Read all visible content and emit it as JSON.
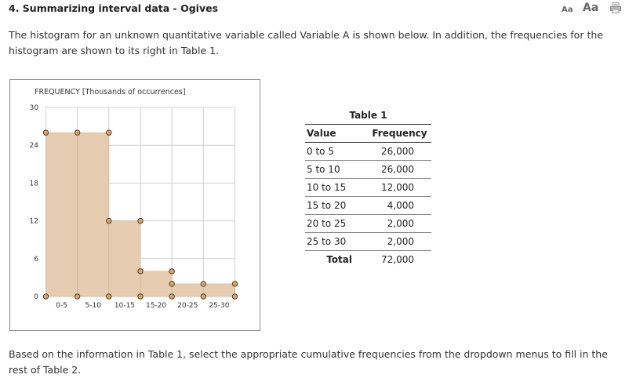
{
  "question": {
    "title": "4. Summarizing interval data - Ogives",
    "font_small_label": "Aa",
    "font_large_label": "Aa",
    "intro_text": "The histogram for an unknown quantitative variable called Variable A is shown below. In addition, the frequencies for the histogram are shown to its right in Table 1.",
    "outro_text": "Based on the information in Table 1, select the appropriate cumulative frequencies from the dropdown menus to fill in the rest of Table 2."
  },
  "chart_data": {
    "type": "bar",
    "ylabel": "FREQUENCY [Thousands of occurrences]",
    "categories": [
      "0-5",
      "5-10",
      "10-15",
      "15-20",
      "20-25",
      "25-30"
    ],
    "values": [
      26,
      26,
      12,
      4,
      2,
      2
    ],
    "ylim": [
      0,
      30
    ],
    "yticks": [
      "0",
      "6",
      "12",
      "18",
      "24",
      "30"
    ],
    "grid": true,
    "colors": {
      "fill": "#e6ccb0",
      "stroke": "#c9a88a",
      "marker": "#d9a66f",
      "marker_stroke": "#5a3a1a",
      "grid": "#d0d0d0"
    }
  },
  "table1": {
    "caption": "Table 1",
    "headers": {
      "value": "Value",
      "frequency": "Frequency"
    },
    "rows": [
      {
        "value": "0 to 5",
        "frequency": "26,000"
      },
      {
        "value": "5 to 10",
        "frequency": "26,000"
      },
      {
        "value": "10 to 15",
        "frequency": "12,000"
      },
      {
        "value": "15 to 20",
        "frequency": "4,000"
      },
      {
        "value": "20 to 25",
        "frequency": "2,000"
      },
      {
        "value": "25 to 30",
        "frequency": "2,000"
      }
    ],
    "total": {
      "label": "Total",
      "value": "72,000"
    }
  }
}
